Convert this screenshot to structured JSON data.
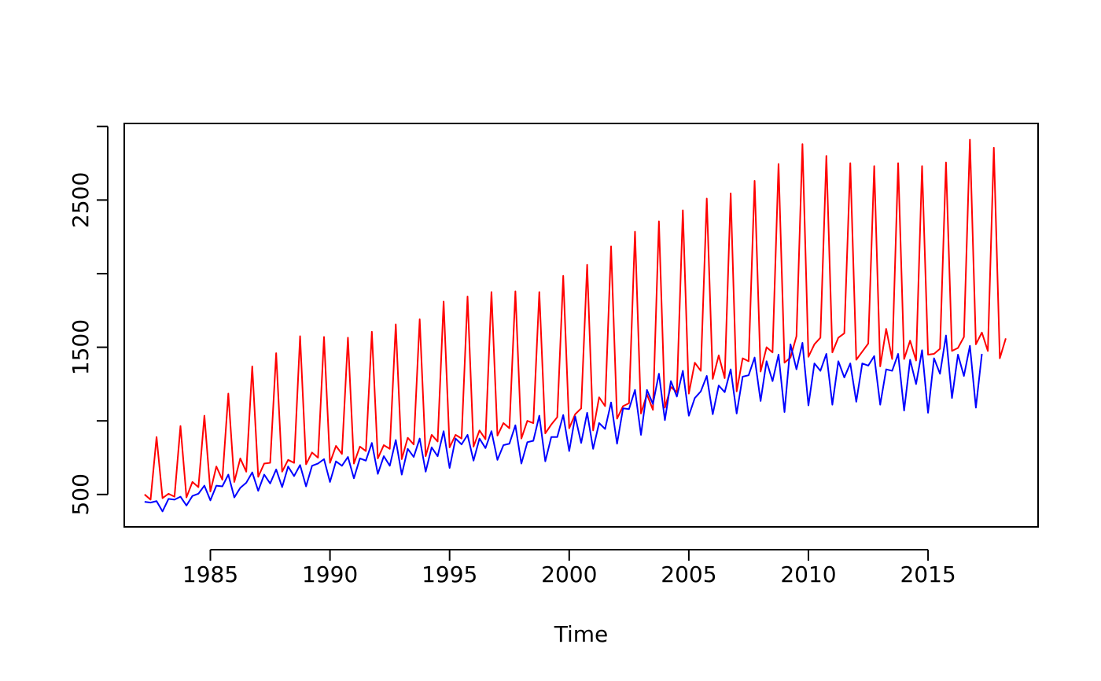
{
  "chart_data": {
    "type": "line",
    "title": "",
    "xlabel": "Time",
    "ylabel": "",
    "xlim": [
      1981.4,
      2019.6
    ],
    "ylim": [
      280,
      3020
    ],
    "x_ticks": [
      1985,
      1990,
      1995,
      2000,
      2005,
      2010,
      2015
    ],
    "x_tick_labels": [
      "1985",
      "1990",
      "1995",
      "2000",
      "2005",
      "2010",
      "2015"
    ],
    "y_ticks": [
      500,
      1000,
      1500,
      2000,
      2500,
      3000
    ],
    "y_tick_labels": [
      "500",
      "",
      "1500",
      "",
      "2500",
      ""
    ],
    "grid": false,
    "legend": "none",
    "x_start": 1982.25,
    "x_step": 0.25,
    "series": [
      {
        "color": "#ff0000",
        "values": [
          500,
          465,
          890,
          475,
          505,
          485,
          965,
          480,
          585,
          550,
          1035,
          520,
          690,
          600,
          1185,
          585,
          745,
          655,
          1370,
          620,
          710,
          715,
          1460,
          655,
          735,
          715,
          1575,
          705,
          785,
          750,
          1570,
          715,
          830,
          775,
          1565,
          710,
          825,
          795,
          1605,
          745,
          835,
          810,
          1655,
          740,
          885,
          840,
          1690,
          760,
          905,
          860,
          1810,
          820,
          905,
          880,
          1845,
          825,
          935,
          875,
          1875,
          900,
          985,
          950,
          1880,
          880,
          1000,
          985,
          1875,
          915,
          975,
          1025,
          1985,
          950,
          1045,
          1085,
          2060,
          935,
          1160,
          1100,
          2185,
          1015,
          1100,
          1120,
          2285,
          1050,
          1180,
          1075,
          2355,
          1090,
          1230,
          1195,
          2430,
          1185,
          1395,
          1340,
          2510,
          1285,
          1445,
          1290,
          2545,
          1200,
          1425,
          1405,
          2630,
          1335,
          1500,
          1465,
          2745,
          1395,
          1430,
          1575,
          2880,
          1435,
          1520,
          1565,
          2800,
          1465,
          1565,
          1595,
          2750,
          1415,
          1470,
          1525,
          2730,
          1370,
          1625,
          1420,
          2750,
          1420,
          1545,
          1410,
          2730,
          1450,
          1455,
          1490,
          2755,
          1475,
          1495,
          1570,
          2910,
          1520,
          1600,
          1475,
          2855,
          1425,
          1560
        ]
      },
      {
        "color": "#0000ff",
        "values": [
          450,
          445,
          455,
          385,
          470,
          465,
          485,
          425,
          490,
          505,
          560,
          460,
          560,
          555,
          635,
          480,
          545,
          580,
          650,
          525,
          635,
          575,
          670,
          550,
          690,
          625,
          700,
          555,
          695,
          710,
          740,
          585,
          725,
          695,
          755,
          610,
          745,
          730,
          850,
          640,
          760,
          695,
          870,
          635,
          810,
          755,
          880,
          655,
          820,
          760,
          930,
          680,
          880,
          840,
          905,
          730,
          880,
          815,
          930,
          735,
          835,
          845,
          970,
          710,
          855,
          865,
          1035,
          725,
          890,
          890,
          1040,
          795,
          1030,
          850,
          1055,
          810,
          985,
          945,
          1125,
          845,
          1085,
          1080,
          1210,
          905,
          1210,
          1115,
          1320,
          1005,
          1270,
          1165,
          1340,
          1035,
          1155,
          1200,
          1305,
          1045,
          1240,
          1195,
          1350,
          1050,
          1300,
          1310,
          1430,
          1135,
          1405,
          1270,
          1450,
          1060,
          1520,
          1350,
          1530,
          1105,
          1390,
          1340,
          1455,
          1110,
          1405,
          1295,
          1390,
          1130,
          1390,
          1375,
          1440,
          1110,
          1350,
          1340,
          1455,
          1070,
          1415,
          1250,
          1480,
          1055,
          1425,
          1320,
          1580,
          1155,
          1450,
          1305,
          1510,
          1090,
          1455
        ]
      }
    ]
  }
}
